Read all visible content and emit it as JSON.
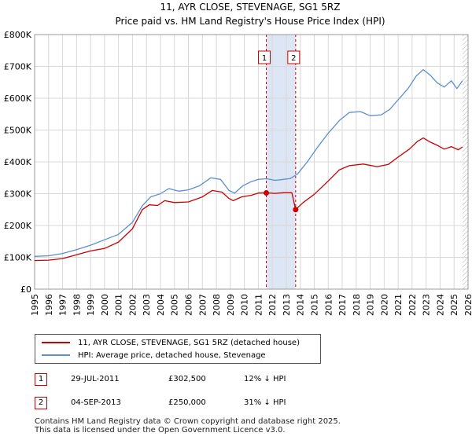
{
  "chart_data": {
    "type": "line",
    "title": "11, AYR CLOSE, STEVENAGE, SG1 5RZ",
    "subtitle": "Price paid vs. HM Land Registry's House Price Index (HPI)",
    "xlim": [
      1995,
      2026
    ],
    "ylim": [
      0,
      800000
    ],
    "x_ticks": [
      "1995",
      "1996",
      "1997",
      "1998",
      "1999",
      "2000",
      "2001",
      "2002",
      "2003",
      "2004",
      "2005",
      "2006",
      "2007",
      "2008",
      "2009",
      "2010",
      "2011",
      "2012",
      "2013",
      "2014",
      "2015",
      "2016",
      "2017",
      "2018",
      "2019",
      "2020",
      "2021",
      "2022",
      "2023",
      "2024",
      "2025",
      "2026"
    ],
    "y_ticks": [
      {
        "value": 0,
        "label": "£0"
      },
      {
        "value": 100000,
        "label": "£100K"
      },
      {
        "value": 200000,
        "label": "£200K"
      },
      {
        "value": 300000,
        "label": "£300K"
      },
      {
        "value": 400000,
        "label": "£400K"
      },
      {
        "value": 500000,
        "label": "£500K"
      },
      {
        "value": 600000,
        "label": "£600K"
      },
      {
        "value": 700000,
        "label": "£700K"
      },
      {
        "value": 800000,
        "label": "£800K"
      }
    ],
    "grid": true,
    "series": [
      {
        "name": "11, AYR CLOSE, STEVENAGE, SG1 5RZ (detached house)",
        "color": "#cc0000",
        "points": [
          [
            1995.0,
            90000
          ],
          [
            1996.0,
            91000
          ],
          [
            1997.0,
            96000
          ],
          [
            1998.0,
            108000
          ],
          [
            1999.0,
            120000
          ],
          [
            2000.0,
            128000
          ],
          [
            2001.0,
            148000
          ],
          [
            2002.0,
            190000
          ],
          [
            2002.7,
            250000
          ],
          [
            2003.2,
            265000
          ],
          [
            2003.8,
            263000
          ],
          [
            2004.3,
            278000
          ],
          [
            2005.0,
            272000
          ],
          [
            2006.0,
            274000
          ],
          [
            2007.0,
            290000
          ],
          [
            2007.7,
            310000
          ],
          [
            2008.4,
            305000
          ],
          [
            2008.9,
            285000
          ],
          [
            2009.2,
            278000
          ],
          [
            2009.8,
            290000
          ],
          [
            2010.5,
            295000
          ],
          [
            2011.0,
            302000
          ],
          [
            2011.57,
            302500
          ],
          [
            2012.2,
            301000
          ],
          [
            2012.8,
            303000
          ],
          [
            2013.4,
            303000
          ],
          [
            2013.67,
            250000
          ],
          [
            2014.2,
            272000
          ],
          [
            2015.0,
            298000
          ],
          [
            2016.0,
            340000
          ],
          [
            2016.8,
            375000
          ],
          [
            2017.5,
            388000
          ],
          [
            2018.5,
            393000
          ],
          [
            2019.5,
            385000
          ],
          [
            2020.3,
            392000
          ],
          [
            2021.0,
            415000
          ],
          [
            2021.8,
            440000
          ],
          [
            2022.4,
            465000
          ],
          [
            2022.8,
            475000
          ],
          [
            2023.3,
            462000
          ],
          [
            2023.8,
            452000
          ],
          [
            2024.3,
            440000
          ],
          [
            2024.8,
            448000
          ],
          [
            2025.3,
            438000
          ],
          [
            2025.6,
            447000
          ]
        ]
      },
      {
        "name": "HPI: Average price, detached house, Stevenage",
        "color": "#5b8fcf",
        "points": [
          [
            1995.0,
            103000
          ],
          [
            1996.0,
            105000
          ],
          [
            1997.0,
            112000
          ],
          [
            1998.0,
            124000
          ],
          [
            1999.0,
            138000
          ],
          [
            2000.0,
            155000
          ],
          [
            2001.0,
            172000
          ],
          [
            2002.0,
            210000
          ],
          [
            2002.7,
            262000
          ],
          [
            2003.3,
            290000
          ],
          [
            2004.0,
            300000
          ],
          [
            2004.6,
            316000
          ],
          [
            2005.3,
            308000
          ],
          [
            2006.0,
            312000
          ],
          [
            2006.8,
            325000
          ],
          [
            2007.6,
            350000
          ],
          [
            2008.3,
            345000
          ],
          [
            2008.9,
            310000
          ],
          [
            2009.3,
            302000
          ],
          [
            2009.9,
            325000
          ],
          [
            2010.5,
            338000
          ],
          [
            2011.0,
            345000
          ],
          [
            2011.6,
            347000
          ],
          [
            2012.2,
            342000
          ],
          [
            2012.8,
            345000
          ],
          [
            2013.3,
            348000
          ],
          [
            2013.8,
            362000
          ],
          [
            2014.5,
            400000
          ],
          [
            2015.3,
            450000
          ],
          [
            2016.0,
            490000
          ],
          [
            2016.8,
            530000
          ],
          [
            2017.5,
            555000
          ],
          [
            2018.3,
            558000
          ],
          [
            2019.0,
            545000
          ],
          [
            2019.8,
            548000
          ],
          [
            2020.4,
            565000
          ],
          [
            2021.0,
            595000
          ],
          [
            2021.7,
            630000
          ],
          [
            2022.3,
            670000
          ],
          [
            2022.8,
            690000
          ],
          [
            2023.3,
            672000
          ],
          [
            2023.8,
            648000
          ],
          [
            2024.3,
            635000
          ],
          [
            2024.8,
            655000
          ],
          [
            2025.2,
            630000
          ],
          [
            2025.6,
            655000
          ]
        ]
      }
    ],
    "markers": [
      {
        "label": "1",
        "x": 2011.57,
        "value": 302500
      },
      {
        "label": "2",
        "x": 2013.67,
        "value": 250000
      }
    ],
    "shaded_bands": [
      {
        "from": 2011.57,
        "to": 2013.67,
        "color": "#dde6f5"
      }
    ],
    "hatch_from": 2025.6
  },
  "legend": {
    "items": [
      {
        "label": "11, AYR CLOSE, STEVENAGE, SG1 5RZ (detached house)",
        "color": "#cc0000"
      },
      {
        "label": "HPI: Average price, detached house, Stevenage",
        "color": "#5b8fcf"
      }
    ]
  },
  "transactions": [
    {
      "num": "1",
      "date": "29-JUL-2011",
      "price": "£302,500",
      "hpi": "12% ↓ HPI"
    },
    {
      "num": "2",
      "date": "04-SEP-2013",
      "price": "£250,000",
      "hpi": "31% ↓ HPI"
    }
  ],
  "footer": {
    "line1": "Contains HM Land Registry data © Crown copyright and database right 2025.",
    "line2": "This data is licensed under the Open Government Licence v3.0."
  }
}
